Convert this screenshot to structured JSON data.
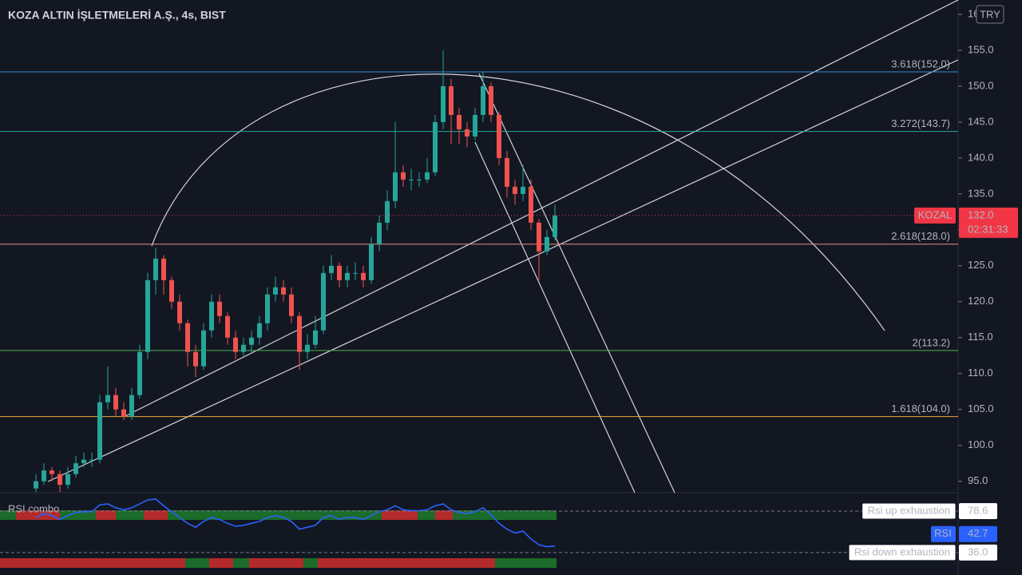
{
  "chart_data": [
    {
      "type": "candlestick",
      "title": "KOZA ALTIN İŞLETMELERİ A.Ş., 4s, BIST",
      "currency": "TRY",
      "ylim": [
        93.4,
        162
      ],
      "yticks": [
        {
          "value": 95,
          "label": "95.0"
        },
        {
          "value": 100,
          "label": "100.0"
        },
        {
          "value": 105,
          "label": "105.0"
        },
        {
          "value": 110,
          "label": "110.0"
        },
        {
          "value": 115,
          "label": "115.0"
        },
        {
          "value": 120,
          "label": "120.0"
        },
        {
          "value": 125,
          "label": "125.0"
        },
        {
          "value": 130,
          "label": "130.0"
        },
        {
          "value": 135,
          "label": "135.0"
        },
        {
          "value": 140,
          "label": "140.0"
        },
        {
          "value": 145,
          "label": "145.0"
        },
        {
          "value": 150,
          "label": "150.0"
        },
        {
          "value": 155,
          "label": "155.0"
        },
        {
          "value": 160,
          "label": "160.0"
        }
      ],
      "up_color": "#26a69a",
      "down_color": "#ef5350",
      "open": [
        94,
        95,
        96.5,
        96,
        94.5,
        96,
        97.5,
        98,
        98,
        106,
        107,
        105,
        104,
        107,
        113,
        123,
        126,
        123,
        120,
        117,
        113,
        111,
        116,
        120,
        118,
        115,
        113,
        114,
        115,
        117,
        121,
        122,
        121,
        118,
        113,
        114,
        116,
        124,
        125,
        123,
        124,
        124,
        123,
        128,
        131,
        134,
        138,
        137,
        137,
        137,
        138,
        145,
        150,
        146,
        144,
        143,
        146,
        150,
        146,
        140,
        136,
        135,
        136,
        131,
        127,
        129
      ],
      "high": [
        96,
        97.5,
        97,
        96.5,
        97,
        98.5,
        99,
        99,
        107,
        111,
        108,
        106,
        108,
        114,
        124,
        127.5,
        126.5,
        123.5,
        121,
        117.5,
        114,
        117,
        121,
        121,
        118.5,
        116,
        115,
        116,
        118,
        122,
        123.5,
        123,
        122,
        118.5,
        115.5,
        118,
        125,
        126.5,
        125.5,
        125,
        125.5,
        125,
        129,
        132,
        135.5,
        145,
        139,
        138.5,
        138,
        140,
        146,
        155,
        151,
        147,
        145,
        147,
        152,
        150.5,
        146.5,
        141,
        137,
        139,
        137,
        131.5,
        130,
        133.5
      ],
      "low": [
        93.5,
        94.5,
        95,
        93.5,
        94,
        95.5,
        97,
        97,
        97.5,
        105,
        104,
        103.5,
        103.5,
        106.5,
        112,
        121,
        121,
        119,
        116,
        111,
        109.5,
        110.5,
        115,
        117,
        114,
        112,
        112.5,
        113,
        114,
        116,
        120,
        120,
        117,
        110.5,
        112,
        113.5,
        115.5,
        123,
        122,
        122,
        123,
        122,
        122.5,
        127,
        130,
        133,
        136,
        135.5,
        136,
        136.5,
        137.5,
        144,
        142,
        142,
        141.5,
        142.5,
        145,
        145,
        139,
        134.5,
        133.5,
        134,
        130,
        123,
        126.5,
        128.5
      ],
      "close": [
        95,
        96.5,
        96,
        94.5,
        96,
        97.5,
        98,
        98,
        106,
        107,
        105,
        104,
        107,
        113,
        123,
        126,
        123,
        120,
        117,
        113,
        111,
        116,
        120,
        118,
        115,
        113,
        114,
        115,
        117,
        121,
        122,
        121,
        118,
        113,
        114,
        116,
        124,
        125,
        123,
        124,
        124,
        123,
        128,
        131,
        134,
        138,
        137,
        137,
        137,
        138,
        145,
        150,
        146,
        144,
        143,
        146,
        150,
        146,
        140,
        136,
        135,
        136,
        131,
        127,
        129,
        132
      ],
      "fib_levels": [
        {
          "label": "3.618(152.0)",
          "value": 152.0,
          "color": "#2f8fd0"
        },
        {
          "label": "3.272(143.7)",
          "value": 143.7,
          "color": "#26a69a"
        },
        {
          "label": "2.618(128.0)",
          "value": 128.0,
          "color": "#e88d80"
        },
        {
          "label": "2(113.2)",
          "value": 113.2,
          "color": "#4caf50"
        },
        {
          "label": "1.618(104.0)",
          "value": 104.0,
          "color": "#f0a73a"
        }
      ],
      "last_price": {
        "symbol": "KOZAL",
        "value": 132.0,
        "label": "132.0",
        "countdown": "02:31:33",
        "color": "#f23645"
      }
    },
    {
      "type": "line",
      "title": "RSI combo",
      "ylim": [
        17,
        95
      ],
      "series": [
        {
          "name": "RSI",
          "color": "#2962ff",
          "values": [
            72,
            76,
            74,
            70,
            74,
            77,
            78,
            78,
            85,
            86,
            82,
            80,
            82,
            86,
            90,
            91,
            84,
            78,
            72,
            66,
            62,
            68,
            72,
            70,
            66,
            63,
            64,
            66,
            68,
            72,
            74,
            72,
            68,
            60,
            62,
            64,
            72,
            74,
            70,
            72,
            72,
            70,
            74,
            78,
            80,
            84,
            80,
            79,
            79,
            80,
            84,
            86,
            80,
            77,
            76,
            78,
            82,
            75,
            66,
            60,
            56,
            58,
            50,
            44,
            42,
            42.7
          ]
        }
      ],
      "thresholds": [
        {
          "name": "Rsi up exhaustion",
          "value": 78.6
        },
        {
          "name": "Rsi down exhaustion",
          "value": 36,
          "label": "36.0"
        }
      ]
    }
  ]
}
